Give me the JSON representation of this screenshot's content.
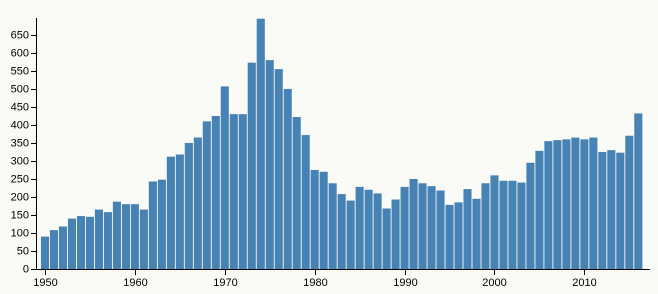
{
  "chart_data": {
    "type": "bar",
    "x": [
      1950,
      1951,
      1952,
      1953,
      1954,
      1955,
      1956,
      1957,
      1958,
      1959,
      1960,
      1961,
      1962,
      1963,
      1964,
      1965,
      1966,
      1967,
      1968,
      1969,
      1970,
      1971,
      1972,
      1973,
      1974,
      1975,
      1976,
      1977,
      1978,
      1979,
      1980,
      1981,
      1982,
      1983,
      1984,
      1985,
      1986,
      1987,
      1988,
      1989,
      1990,
      1991,
      1992,
      1993,
      1994,
      1995,
      1996,
      1997,
      1998,
      1999,
      2000,
      2001,
      2002,
      2003,
      2004,
      2005,
      2006,
      2007,
      2008,
      2009,
      2010,
      2011,
      2012,
      2013,
      2014,
      2015,
      2016
    ],
    "values": [
      90,
      108,
      118,
      140,
      147,
      145,
      165,
      158,
      187,
      180,
      180,
      165,
      243,
      248,
      312,
      318,
      350,
      365,
      410,
      425,
      507,
      430,
      430,
      573,
      695,
      580,
      555,
      500,
      422,
      372,
      275,
      270,
      238,
      208,
      190,
      228,
      220,
      210,
      168,
      193,
      228,
      250,
      238,
      230,
      218,
      178,
      185,
      222,
      195,
      238,
      260,
      245,
      245,
      240,
      295,
      328,
      355,
      358,
      360,
      365,
      360,
      365,
      325,
      330,
      323,
      370,
      432
    ],
    "color": "#4682b4",
    "xlim": [
      1949,
      2017.3
    ],
    "xticks": [
      1950,
      1960,
      1970,
      1980,
      1990,
      2000,
      2010
    ],
    "ylim": [
      0,
      697
    ],
    "yticks": [
      0,
      50,
      100,
      150,
      200,
      250,
      300,
      350,
      400,
      450,
      500,
      550,
      600,
      650
    ],
    "grid": false
  }
}
